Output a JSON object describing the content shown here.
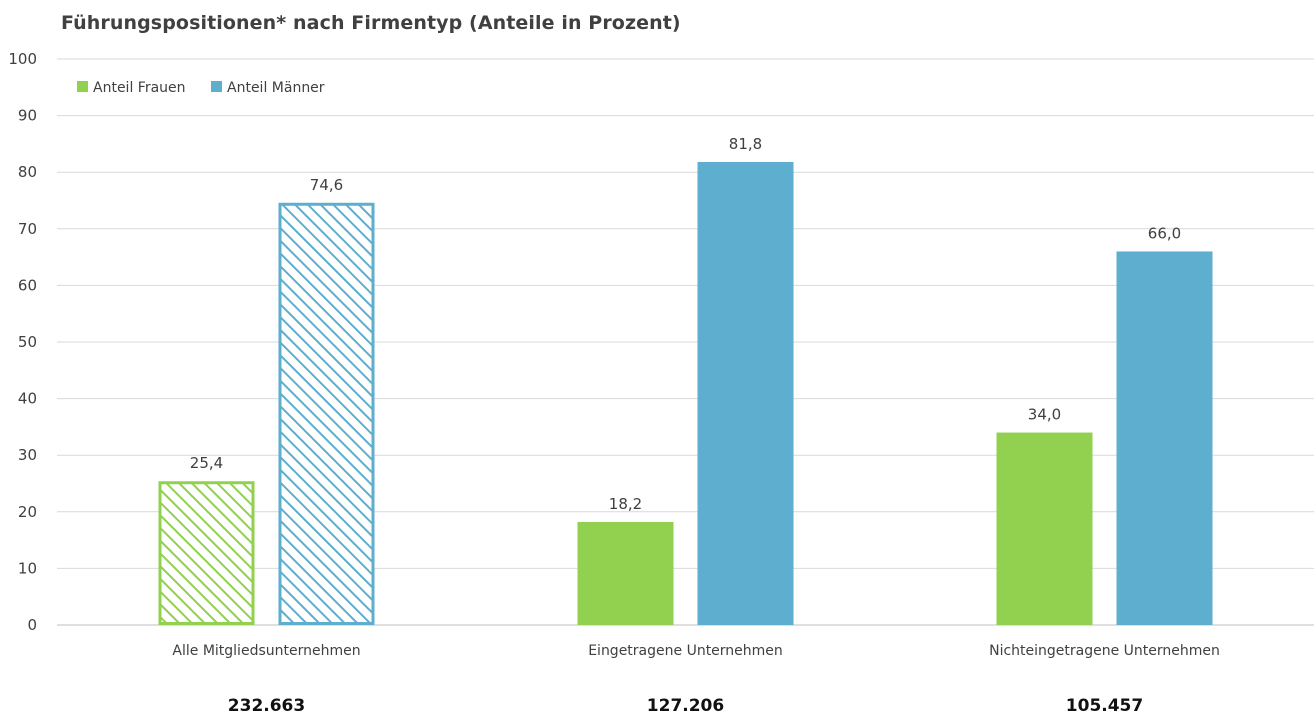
{
  "title": "Führungspositionen* nach Firmentyp (Anteile in Prozent)",
  "colors": {
    "frauen": "#92d050",
    "maenner": "#5eaecf",
    "grid": "#d9d9d9",
    "text": "#404040"
  },
  "chart_data": {
    "type": "bar",
    "title": "Führungspositionen* nach Firmentyp (Anteile in Prozent)",
    "categories": [
      "Alle Mitgliedsunternehmen",
      "Eingetragene Unternehmen",
      "Nichteingetragene Unternehmen"
    ],
    "totals": [
      "232.663",
      "127.206",
      "105.457"
    ],
    "series": [
      {
        "name": "Anteil Frauen",
        "values": [
          25.4,
          18.2,
          34.0
        ],
        "labels": [
          "25,4",
          "18,2",
          "34,0"
        ],
        "color": "#92d050"
      },
      {
        "name": "Anteil Männer",
        "values": [
          74.6,
          81.8,
          66.0
        ],
        "labels": [
          "74,6",
          "81,8",
          "66,0"
        ],
        "color": "#5eaecf"
      }
    ],
    "hatched_categories": [
      0
    ],
    "ylim": [
      0,
      100
    ],
    "yticks": [
      0,
      10,
      20,
      30,
      40,
      50,
      60,
      70,
      80,
      90,
      100
    ],
    "grid": true,
    "legend_position": "top-left"
  }
}
